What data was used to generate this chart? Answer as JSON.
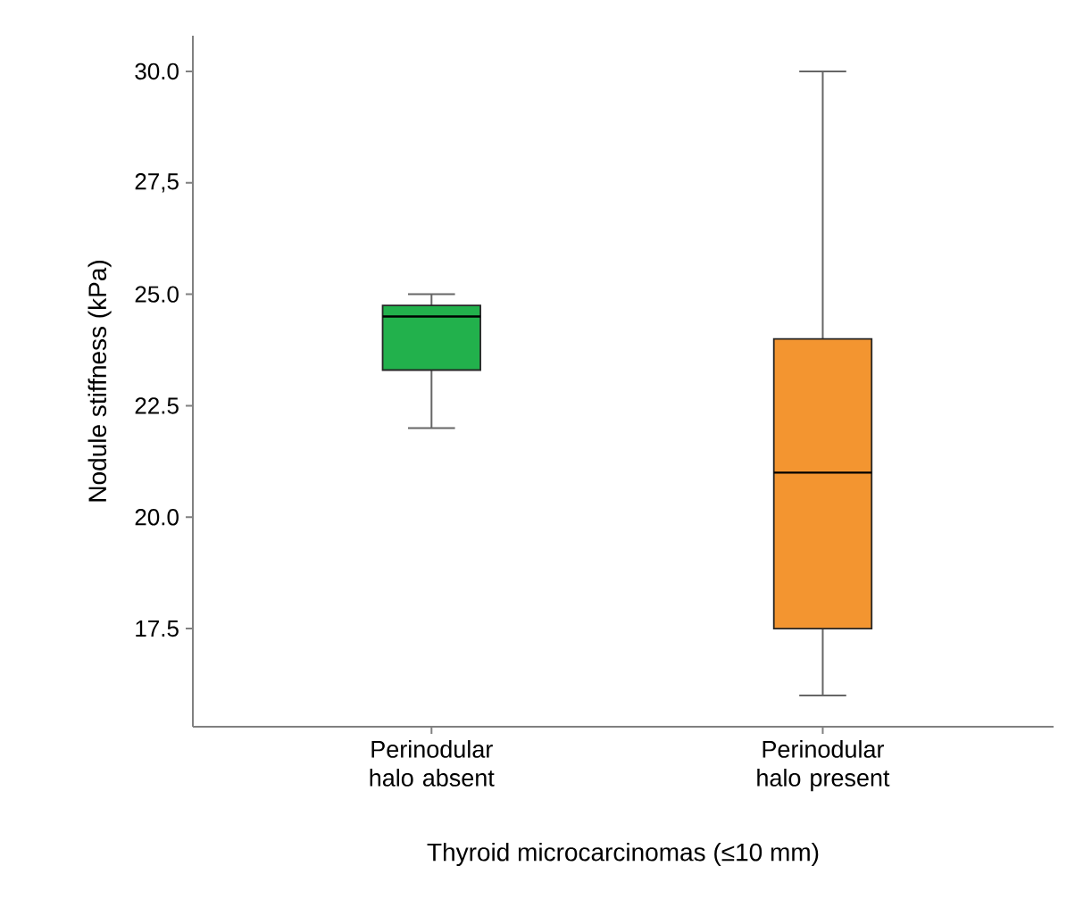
{
  "chart_data": {
    "type": "box",
    "xlabel": "Thyroid microcarcinomas (≤10 mm)",
    "ylabel": "Nodule stiffness (kPa)",
    "categories": [
      "Perinodular halo absent",
      "Perinodular halo present"
    ],
    "boxes": [
      {
        "low": 22.0,
        "q1": 23.3,
        "median": 24.5,
        "q3": 24.75,
        "high": 25.0
      },
      {
        "low": 16.0,
        "q1": 17.5,
        "median": 21.0,
        "q3": 24.0,
        "high": 30.0
      }
    ],
    "colors": [
      "#22b14c",
      "#f39530"
    ],
    "ylim": [
      15.3,
      30.8
    ],
    "yticks": [
      {
        "value": 17.5,
        "label": "17.5"
      },
      {
        "value": 20.0,
        "label": "20.0"
      },
      {
        "value": 22.5,
        "label": "22.5"
      },
      {
        "value": 25.0,
        "label": "25.0"
      },
      {
        "value": 27.5,
        "label": "27,5"
      },
      {
        "value": 30.0,
        "label": "30.0"
      }
    ]
  }
}
